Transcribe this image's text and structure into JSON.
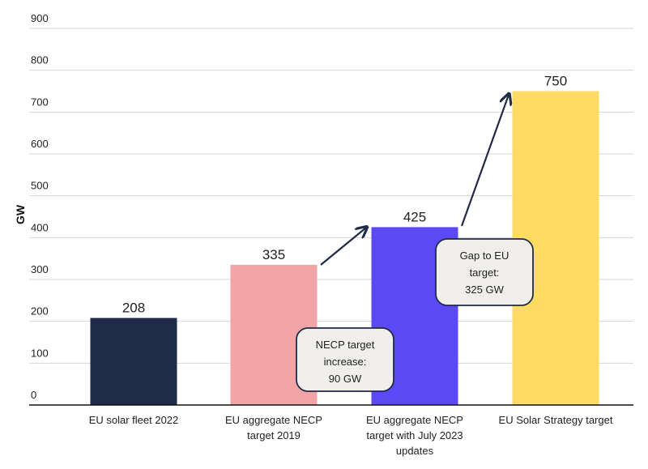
{
  "chart_data": {
    "type": "bar",
    "title": "",
    "xlabel": "",
    "ylabel": "GW",
    "ylim": [
      0,
      900
    ],
    "yticks": [
      0,
      100,
      200,
      300,
      400,
      500,
      600,
      700,
      800,
      900
    ],
    "grid": true,
    "categories": [
      [
        "EU solar fleet 2022"
      ],
      [
        "EU aggregate NECP",
        "target 2019"
      ],
      [
        "EU aggregate NECP",
        "target with July 2023",
        "updates"
      ],
      [
        "EU Solar Strategy target"
      ]
    ],
    "values": [
      208,
      335,
      425,
      750
    ],
    "colors": [
      "#1f2b47",
      "#f2a5a6",
      "#5b49f5",
      "#ffdb63"
    ],
    "annotations": [
      {
        "lines": [
          "NECP target",
          "increase:",
          "90 GW"
        ],
        "from_bar": 1,
        "to_bar": 2
      },
      {
        "lines": [
          "Gap to EU",
          "target:",
          "325 GW"
        ],
        "from_bar": 2,
        "to_bar": 3
      }
    ]
  }
}
